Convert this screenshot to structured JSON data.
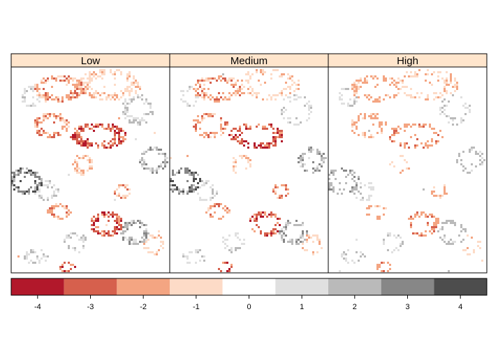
{
  "chart_data": {
    "type": "heatmap",
    "title": "",
    "panels": [
      {
        "name": "Low",
        "intensity": 1.0
      },
      {
        "name": "Medium",
        "intensity": 0.72
      },
      {
        "name": "High",
        "intensity": 0.55
      }
    ],
    "colorkey": {
      "breaks": [
        -4.5,
        -3.5,
        -2.5,
        -1.5,
        -0.5,
        0.5,
        1.5,
        2.5,
        3.5,
        4.5
      ],
      "colors": [
        "#b2182b",
        "#d6604d",
        "#f4a582",
        "#fddbc7",
        "#ffffff",
        "#e0e0e0",
        "#bababa",
        "#878787",
        "#4d4d4d"
      ],
      "tick_values": [
        -4,
        -3,
        -2,
        -1,
        0,
        1,
        2,
        3,
        4
      ],
      "tick_labels": [
        "-4",
        "-3",
        "-2",
        "-1",
        "0",
        "1",
        "2",
        "3",
        "4"
      ]
    },
    "strip_color": "#ffe5cc",
    "grid": false,
    "legend_position": "bottom"
  }
}
